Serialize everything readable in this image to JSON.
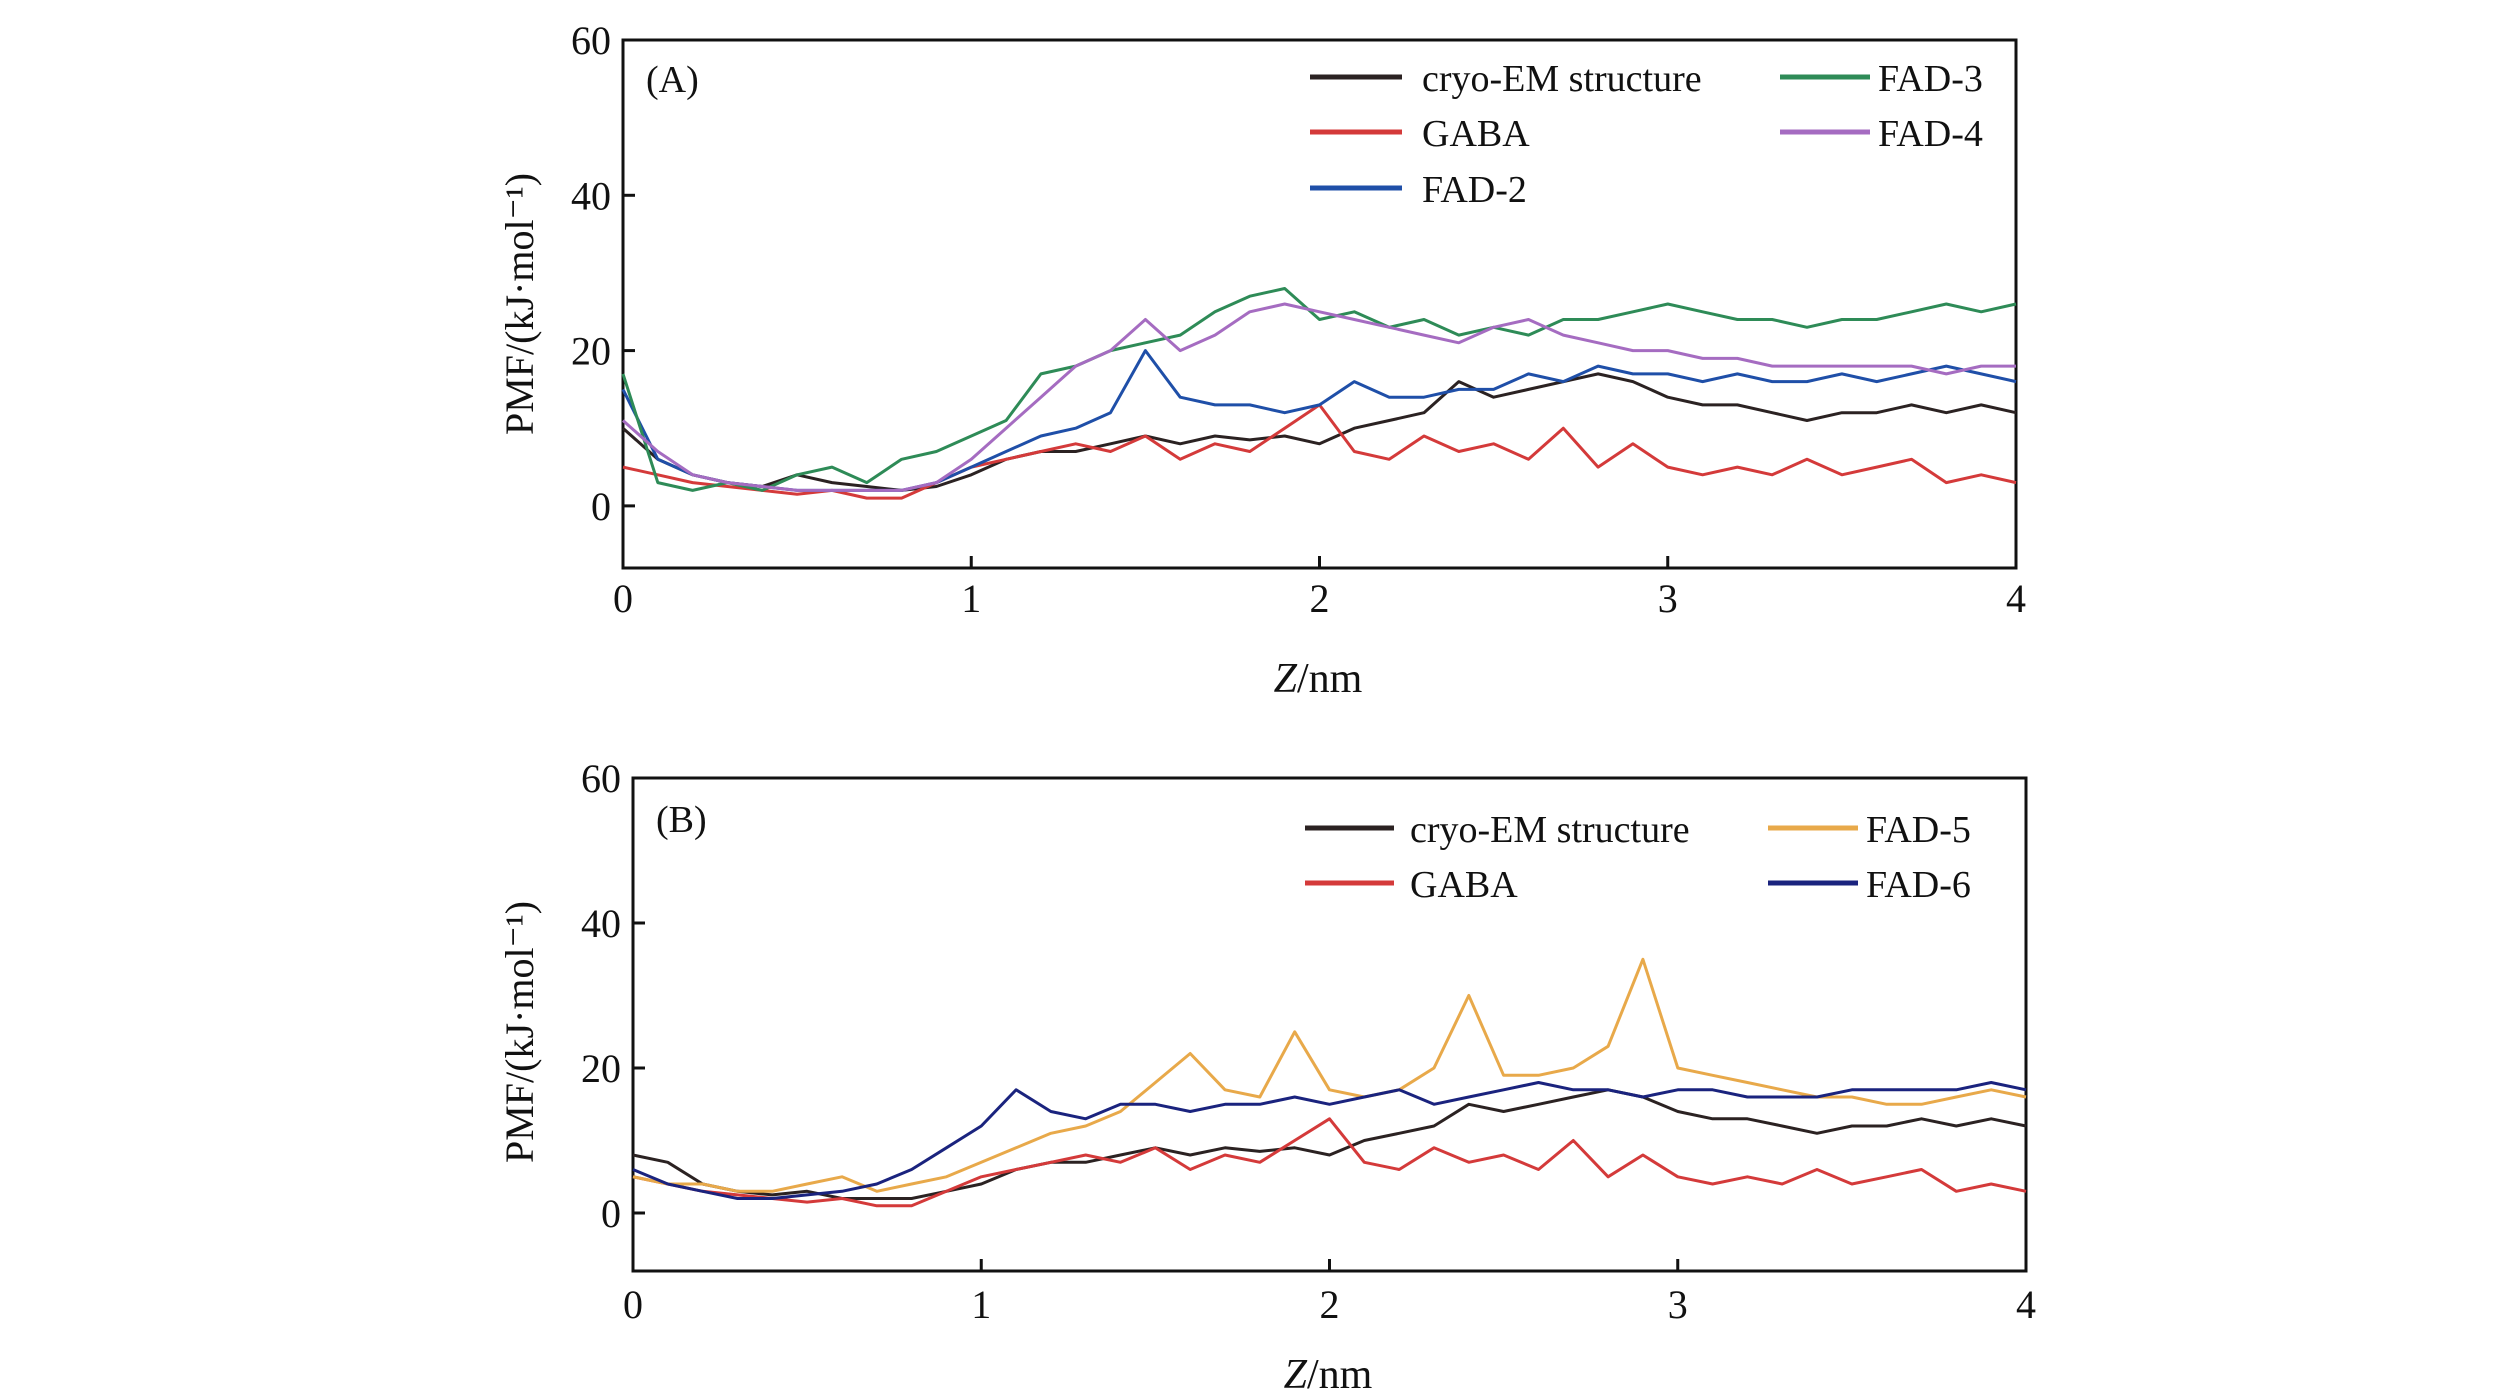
{
  "chart_data": [
    {
      "type": "line",
      "panel_label": "(A)",
      "xlabel_var": "Z",
      "xlabel_unit": "/nm",
      "ylabel": "PMF/(kJ·mol⁻¹)",
      "xlim": [
        0,
        4
      ],
      "ylim": [
        -8,
        60
      ],
      "xticks": [
        "0",
        "1",
        "2",
        "3",
        "4"
      ],
      "yticks": [
        "0",
        "20",
        "40",
        "60"
      ],
      "legend_position": "top-right",
      "series": [
        {
          "name": "cryo-EM structure",
          "color": "#2b2222",
          "x": [
            0,
            0.1,
            0.2,
            0.3,
            0.4,
            0.5,
            0.6,
            0.7,
            0.8,
            0.9,
            1.0,
            1.1,
            1.2,
            1.3,
            1.4,
            1.5,
            1.6,
            1.7,
            1.8,
            1.9,
            2.0,
            2.1,
            2.2,
            2.3,
            2.4,
            2.5,
            2.6,
            2.7,
            2.8,
            2.9,
            3.0,
            3.1,
            3.2,
            3.3,
            3.4,
            3.5,
            3.6,
            3.7,
            3.8,
            3.9,
            4.0
          ],
          "y": [
            10,
            6,
            4,
            3,
            2.5,
            4,
            3,
            2.5,
            2,
            2.5,
            4,
            6,
            7,
            7,
            8,
            9,
            8,
            9,
            8.5,
            9,
            8,
            10,
            11,
            12,
            16,
            14,
            15,
            16,
            17,
            16,
            14,
            13,
            13,
            12,
            11,
            12,
            12,
            13,
            12,
            13,
            12
          ]
        },
        {
          "name": "GABA",
          "color": "#d43a3a",
          "x": [
            0,
            0.1,
            0.2,
            0.3,
            0.4,
            0.5,
            0.6,
            0.7,
            0.8,
            0.9,
            1.0,
            1.1,
            1.2,
            1.3,
            1.4,
            1.5,
            1.6,
            1.7,
            1.8,
            1.9,
            2.0,
            2.1,
            2.2,
            2.3,
            2.4,
            2.5,
            2.6,
            2.7,
            2.8,
            2.9,
            3.0,
            3.1,
            3.2,
            3.3,
            3.4,
            3.5,
            3.6,
            3.7,
            3.8,
            3.9,
            4.0
          ],
          "y": [
            5,
            4,
            3,
            2.5,
            2,
            1.5,
            2,
            1,
            1,
            3,
            5,
            6,
            7,
            8,
            7,
            9,
            6,
            8,
            7,
            10,
            13,
            7,
            6,
            9,
            7,
            8,
            6,
            10,
            5,
            8,
            5,
            4,
            5,
            4,
            6,
            4,
            5,
            6,
            3,
            4,
            3
          ]
        },
        {
          "name": "FAD-2",
          "color": "#1f4fa8",
          "x": [
            0,
            0.1,
            0.2,
            0.3,
            0.4,
            0.5,
            0.6,
            0.7,
            0.8,
            0.9,
            1.0,
            1.1,
            1.2,
            1.3,
            1.4,
            1.5,
            1.6,
            1.7,
            1.8,
            1.9,
            2.0,
            2.1,
            2.2,
            2.3,
            2.4,
            2.5,
            2.6,
            2.7,
            2.8,
            2.9,
            3.0,
            3.1,
            3.2,
            3.3,
            3.4,
            3.5,
            3.6,
            3.7,
            3.8,
            3.9,
            4.0
          ],
          "y": [
            15,
            6,
            4,
            3,
            2.5,
            2,
            2,
            2,
            2,
            3,
            5,
            7,
            9,
            10,
            12,
            20,
            14,
            13,
            13,
            12,
            13,
            16,
            14,
            14,
            15,
            15,
            17,
            16,
            18,
            17,
            17,
            16,
            17,
            16,
            16,
            17,
            16,
            17,
            18,
            17,
            16
          ]
        },
        {
          "name": "FAD-3",
          "color": "#2e8b57",
          "x": [
            0,
            0.1,
            0.2,
            0.3,
            0.4,
            0.5,
            0.6,
            0.7,
            0.8,
            0.9,
            1.0,
            1.1,
            1.2,
            1.3,
            1.4,
            1.5,
            1.6,
            1.7,
            1.8,
            1.9,
            2.0,
            2.1,
            2.2,
            2.3,
            2.4,
            2.5,
            2.6,
            2.7,
            2.8,
            2.9,
            3.0,
            3.1,
            3.2,
            3.3,
            3.4,
            3.5,
            3.6,
            3.7,
            3.8,
            3.9,
            4.0
          ],
          "y": [
            17,
            3,
            2,
            3,
            2,
            4,
            5,
            3,
            6,
            7,
            9,
            11,
            17,
            18,
            20,
            21,
            22,
            25,
            27,
            28,
            24,
            25,
            23,
            24,
            22,
            23,
            22,
            24,
            24,
            25,
            26,
            25,
            24,
            24,
            23,
            24,
            24,
            25,
            26,
            25,
            26
          ]
        },
        {
          "name": "FAD-4",
          "color": "#a56cc1",
          "x": [
            0,
            0.1,
            0.2,
            0.3,
            0.4,
            0.5,
            0.6,
            0.7,
            0.8,
            0.9,
            1.0,
            1.1,
            1.2,
            1.3,
            1.4,
            1.5,
            1.6,
            1.7,
            1.8,
            1.9,
            2.0,
            2.1,
            2.2,
            2.3,
            2.4,
            2.5,
            2.6,
            2.7,
            2.8,
            2.9,
            3.0,
            3.1,
            3.2,
            3.3,
            3.4,
            3.5,
            3.6,
            3.7,
            3.8,
            3.9,
            4.0
          ],
          "y": [
            11,
            7,
            4,
            3,
            2.5,
            2,
            2,
            2,
            2,
            3,
            6,
            10,
            14,
            18,
            20,
            24,
            20,
            22,
            25,
            26,
            25,
            24,
            23,
            22,
            21,
            23,
            24,
            22,
            21,
            20,
            20,
            19,
            19,
            18,
            18,
            18,
            18,
            18,
            17,
            18,
            18
          ]
        }
      ]
    },
    {
      "type": "line",
      "panel_label": "(B)",
      "xlabel_var": "Z",
      "xlabel_unit": "/nm",
      "ylabel": "PMF/(kJ·mol⁻¹)",
      "xlim": [
        0,
        4
      ],
      "ylim": [
        -8,
        60
      ],
      "xticks": [
        "0",
        "1",
        "2",
        "3",
        "4"
      ],
      "yticks": [
        "0",
        "20",
        "40",
        "60"
      ],
      "legend_position": "top-right",
      "series": [
        {
          "name": "cryo-EM structure",
          "color": "#2b2222",
          "x": [
            0,
            0.1,
            0.2,
            0.3,
            0.4,
            0.5,
            0.6,
            0.7,
            0.8,
            0.9,
            1.0,
            1.1,
            1.2,
            1.3,
            1.4,
            1.5,
            1.6,
            1.7,
            1.8,
            1.9,
            2.0,
            2.1,
            2.2,
            2.3,
            2.4,
            2.5,
            2.6,
            2.7,
            2.8,
            2.9,
            3.0,
            3.1,
            3.2,
            3.3,
            3.4,
            3.5,
            3.6,
            3.7,
            3.8,
            3.9,
            4.0
          ],
          "y": [
            8,
            7,
            4,
            3,
            2.5,
            3,
            2,
            2,
            2,
            3,
            4,
            6,
            7,
            7,
            8,
            9,
            8,
            9,
            8.5,
            9,
            8,
            10,
            11,
            12,
            15,
            14,
            15,
            16,
            17,
            16,
            14,
            13,
            13,
            12,
            11,
            12,
            12,
            13,
            12,
            13,
            12
          ]
        },
        {
          "name": "GABA",
          "color": "#d43a3a",
          "x": [
            0,
            0.1,
            0.2,
            0.3,
            0.4,
            0.5,
            0.6,
            0.7,
            0.8,
            0.9,
            1.0,
            1.1,
            1.2,
            1.3,
            1.4,
            1.5,
            1.6,
            1.7,
            1.8,
            1.9,
            2.0,
            2.1,
            2.2,
            2.3,
            2.4,
            2.5,
            2.6,
            2.7,
            2.8,
            2.9,
            3.0,
            3.1,
            3.2,
            3.3,
            3.4,
            3.5,
            3.6,
            3.7,
            3.8,
            3.9,
            4.0
          ],
          "y": [
            5,
            4,
            3,
            2.5,
            2,
            1.5,
            2,
            1,
            1,
            3,
            5,
            6,
            7,
            8,
            7,
            9,
            6,
            8,
            7,
            10,
            13,
            7,
            6,
            9,
            7,
            8,
            6,
            10,
            5,
            8,
            5,
            4,
            5,
            4,
            6,
            4,
            5,
            6,
            3,
            4,
            3
          ]
        },
        {
          "name": "FAD-5",
          "color": "#e8a94a",
          "x": [
            0,
            0.1,
            0.2,
            0.3,
            0.4,
            0.5,
            0.6,
            0.7,
            0.8,
            0.9,
            1.0,
            1.1,
            1.2,
            1.3,
            1.4,
            1.5,
            1.6,
            1.7,
            1.8,
            1.9,
            2.0,
            2.1,
            2.2,
            2.3,
            2.4,
            2.5,
            2.6,
            2.7,
            2.8,
            2.9,
            3.0,
            3.1,
            3.2,
            3.3,
            3.4,
            3.5,
            3.6,
            3.7,
            3.8,
            3.9,
            4.0
          ],
          "y": [
            5,
            4,
            4,
            3,
            3,
            4,
            5,
            3,
            4,
            5,
            7,
            9,
            11,
            12,
            14,
            18,
            22,
            17,
            16,
            25,
            17,
            16,
            17,
            20,
            30,
            19,
            19,
            20,
            23,
            35,
            20,
            19,
            18,
            17,
            16,
            16,
            15,
            15,
            16,
            17,
            16
          ]
        },
        {
          "name": "FAD-6",
          "color": "#1a237e",
          "x": [
            0,
            0.1,
            0.2,
            0.3,
            0.4,
            0.5,
            0.6,
            0.7,
            0.8,
            0.9,
            1.0,
            1.1,
            1.2,
            1.3,
            1.4,
            1.5,
            1.6,
            1.7,
            1.8,
            1.9,
            2.0,
            2.1,
            2.2,
            2.3,
            2.4,
            2.5,
            2.6,
            2.7,
            2.8,
            2.9,
            3.0,
            3.1,
            3.2,
            3.3,
            3.4,
            3.5,
            3.6,
            3.7,
            3.8,
            3.9,
            4.0
          ],
          "y": [
            6,
            4,
            3,
            2,
            2,
            2.5,
            3,
            4,
            6,
            9,
            12,
            17,
            14,
            13,
            15,
            15,
            14,
            15,
            15,
            16,
            15,
            16,
            17,
            15,
            16,
            17,
            18,
            17,
            17,
            16,
            17,
            17,
            16,
            16,
            16,
            17,
            17,
            17,
            17,
            18,
            17
          ]
        }
      ]
    }
  ]
}
